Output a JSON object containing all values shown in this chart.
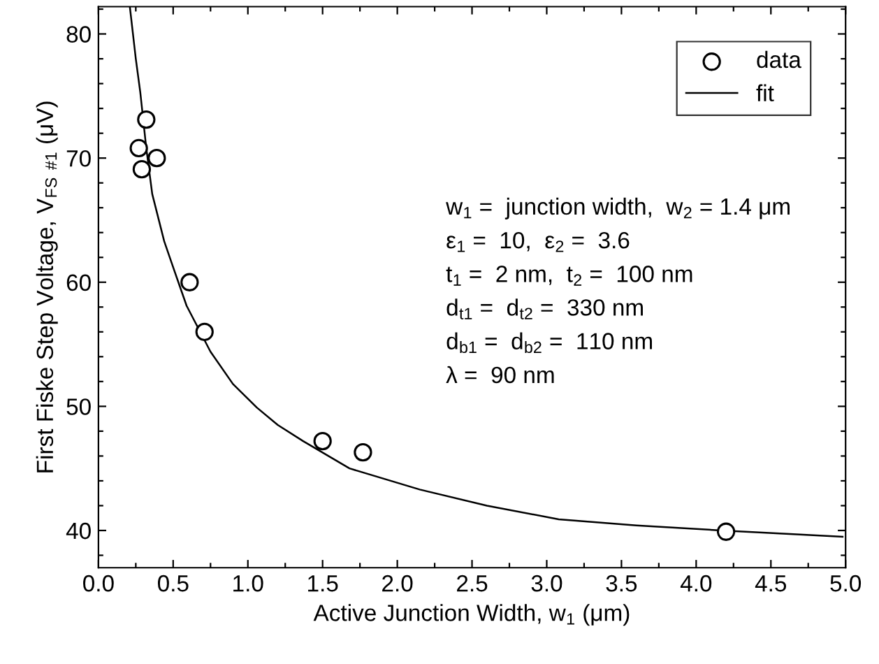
{
  "chart_data": {
    "type": "scatter",
    "xlabel": "Active Junction Width, w$_{1}$ (μm)",
    "ylabel": "First Fiske Step Voltage, V$_{FS}$ $_{#1}$ (μV)",
    "xlim": [
      0,
      5
    ],
    "ylim": [
      37,
      82.2
    ],
    "xticks": [
      {
        "value": 0,
        "label": "0.0"
      },
      {
        "value": 0.25,
        "label": null
      },
      0.5,
      {
        "value": 0.75,
        "label": null
      },
      {
        "value": 1,
        "label": "1.0"
      },
      {
        "value": 1.25,
        "label": null
      },
      1.5,
      {
        "value": 1.75,
        "label": null
      },
      {
        "value": 2,
        "label": "2.0"
      },
      {
        "value": 2.25,
        "label": null
      },
      2.5,
      {
        "value": 2.75,
        "label": null
      },
      {
        "value": 3,
        "label": "3.0"
      },
      {
        "value": 3.25,
        "label": null
      },
      3.5,
      {
        "value": 3.75,
        "label": null
      },
      {
        "value": 4,
        "label": "4.0"
      },
      {
        "value": 4.25,
        "label": null
      },
      4.5,
      {
        "value": 4.75,
        "label": null
      },
      {
        "value": 5,
        "label": "5.0"
      }
    ],
    "yticks": [
      {
        "value": 38,
        "label": null
      },
      40,
      {
        "value": 42,
        "label": null
      },
      {
        "value": 44,
        "label": null
      },
      {
        "value": 46,
        "label": null
      },
      {
        "value": 48,
        "label": null
      },
      50,
      {
        "value": 52,
        "label": null
      },
      {
        "value": 54,
        "label": null
      },
      {
        "value": 56,
        "label": null
      },
      {
        "value": 58,
        "label": null
      },
      60,
      {
        "value": 62,
        "label": null
      },
      {
        "value": 64,
        "label": null
      },
      {
        "value": 66,
        "label": null
      },
      {
        "value": 68,
        "label": null
      },
      70,
      {
        "value": 72,
        "label": null
      },
      {
        "value": 74,
        "label": null
      },
      {
        "value": 76,
        "label": null
      },
      {
        "value": 78,
        "label": null
      },
      80,
      {
        "value": 82,
        "label": null
      }
    ],
    "grid": false,
    "legend": "top right",
    "series": [
      {
        "name": "data",
        "marker": "circle",
        "color": "#000000",
        "x": [
          0.27,
          0.29,
          0.32,
          0.39,
          0.61,
          0.71,
          1.5,
          1.77,
          4.2
        ],
        "values": [
          70.8,
          69.1,
          73.1,
          70.0,
          60.0,
          56.0,
          47.2,
          46.3,
          39.9
        ]
      },
      {
        "name": "fit",
        "type": "line",
        "marker": "none",
        "line_style": "solid",
        "color": "#000000",
        "x": [
          0.21,
          0.25,
          0.28,
          0.32,
          0.36,
          0.44,
          0.5,
          0.59,
          0.75,
          0.9,
          1.06,
          1.2,
          1.37,
          1.68,
          2.15,
          2.6,
          3.08,
          3.6,
          4.17,
          4.98
        ],
        "values": [
          82.2,
          78.0,
          75.3,
          70.8,
          67.1,
          63.3,
          61.2,
          58.1,
          54.4,
          51.8,
          49.9,
          48.5,
          47.2,
          45.0,
          43.3,
          42.0,
          40.9,
          40.4,
          40.0,
          39.5
        ]
      }
    ],
    "annotations": [
      "w$_{1}$ =  junction width,  w$_{2}$ = 1.4 μm",
      "ε$_{1}$ =  10,  ε$_{2}$ =  3.6",
      "t$_{1}$ =  2 nm,  t$_{2}$ =  100 nm",
      "d$_{t1}$ =  d$_{t2}$ =  330 nm",
      "d$_{b1}$ =  d$_{b2}$ =  110 nm",
      "λ =  90 nm"
    ]
  }
}
